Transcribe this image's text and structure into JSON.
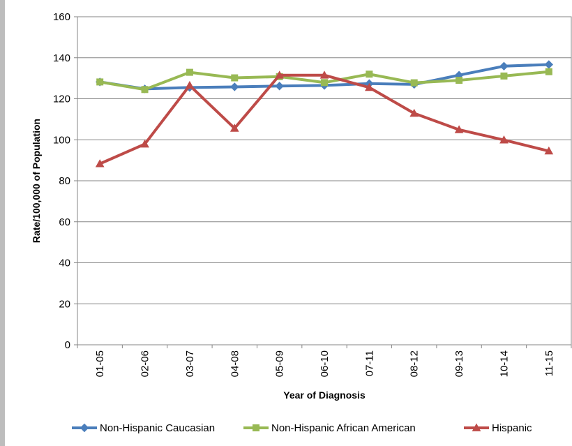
{
  "chart_data": {
    "type": "line",
    "title": "",
    "xlabel": "Year of Diagnosis",
    "ylabel": "Rate/100,000 of Population",
    "categories": [
      "01-05",
      "02-06",
      "03-07",
      "04-08",
      "05-09",
      "06-10",
      "07-11",
      "08-12",
      "09-13",
      "10-14",
      "11-15"
    ],
    "ylim": [
      0,
      160
    ],
    "yticks": [
      "0",
      "20",
      "40",
      "60",
      "80",
      "100",
      "120",
      "140",
      "160"
    ],
    "grid": "horizontal",
    "legend_position": "bottom",
    "series": [
      {
        "name": "Non-Hispanic Caucasian",
        "color": "#4a7ebb",
        "marker": "diamond",
        "values": [
          128.2,
          124.8,
          125.5,
          125.8,
          126.2,
          126.5,
          127.4,
          127.0,
          131.5,
          135.9,
          136.7
        ]
      },
      {
        "name": "Non-Hispanic African American",
        "color": "#98b954",
        "marker": "square",
        "values": [
          128.2,
          124.5,
          132.9,
          130.2,
          130.8,
          127.9,
          132.0,
          127.8,
          129.0,
          131.1,
          133.2
        ]
      },
      {
        "name": "Hispanic",
        "color": "#be4b48",
        "marker": "triangle",
        "values": [
          88.3,
          97.9,
          126.5,
          105.6,
          131.5,
          131.5,
          125.5,
          112.9,
          104.9,
          99.9,
          94.5
        ]
      }
    ]
  }
}
